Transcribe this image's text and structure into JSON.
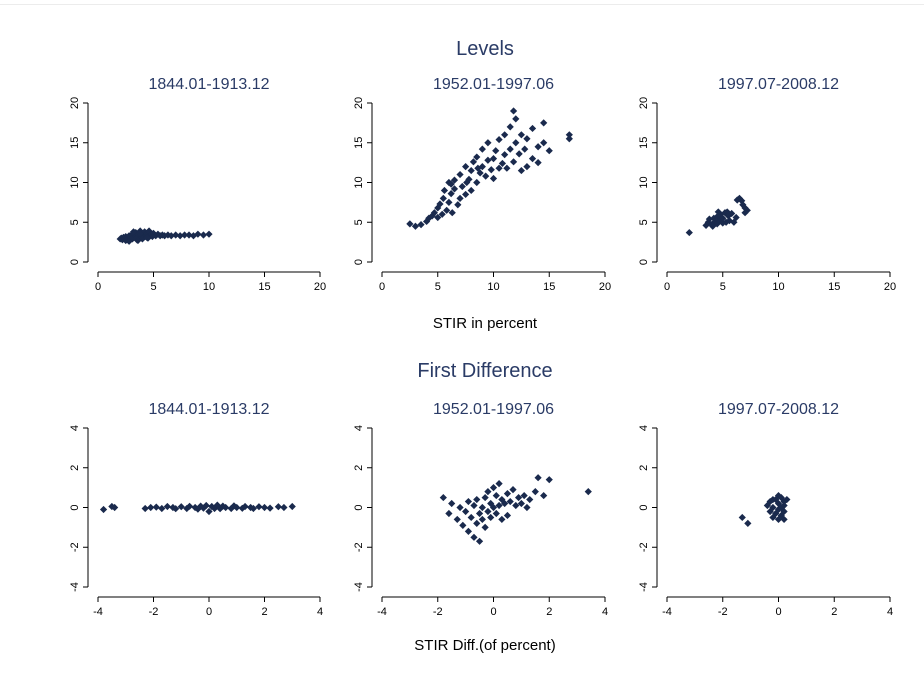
{
  "figure": {
    "colors": {
      "marker": "#1a2a4d",
      "title": "#2a3b66",
      "axis": "#000000",
      "background": "#ffffff"
    },
    "marker_shape": "diamond",
    "sections": [
      {
        "title": "Levels",
        "xlabel": "STIR in percent"
      },
      {
        "title": "First Difference",
        "xlabel": "STIR Diff.(of percent)"
      }
    ]
  },
  "chart_data": [
    {
      "type": "scatter",
      "section": "Levels",
      "title": "1844.01-1913.12",
      "xlim": [
        0,
        20
      ],
      "ylim": [
        0,
        20
      ],
      "xticks": [
        "0",
        "5",
        "10",
        "15",
        "20"
      ],
      "yticks": [
        "0",
        "5",
        "10",
        "15",
        "20"
      ],
      "grid": false,
      "points": [
        [
          2.0,
          2.9
        ],
        [
          2.1,
          3.0
        ],
        [
          2.2,
          2.8
        ],
        [
          2.3,
          3.1
        ],
        [
          2.4,
          2.9
        ],
        [
          2.5,
          3.2
        ],
        [
          2.6,
          3.0
        ],
        [
          2.7,
          2.8
        ],
        [
          2.8,
          3.3
        ],
        [
          2.9,
          3.0
        ],
        [
          3.0,
          3.4
        ],
        [
          3.1,
          2.9
        ],
        [
          3.2,
          3.5
        ],
        [
          3.3,
          3.1
        ],
        [
          3.4,
          3.7
        ],
        [
          3.5,
          3.0
        ],
        [
          3.6,
          3.6
        ],
        [
          3.7,
          3.2
        ],
        [
          3.8,
          3.9
        ],
        [
          3.9,
          3.1
        ],
        [
          4.0,
          3.5
        ],
        [
          4.1,
          3.3
        ],
        [
          4.2,
          3.8
        ],
        [
          4.3,
          3.2
        ],
        [
          4.4,
          3.6
        ],
        [
          4.5,
          3.4
        ],
        [
          4.6,
          3.9
        ],
        [
          4.7,
          3.3
        ],
        [
          4.8,
          3.5
        ],
        [
          4.9,
          3.2
        ],
        [
          5.0,
          3.6
        ],
        [
          5.2,
          3.3
        ],
        [
          5.4,
          3.5
        ],
        [
          5.6,
          3.3
        ],
        [
          5.8,
          3.4
        ],
        [
          6.0,
          3.3
        ],
        [
          6.3,
          3.4
        ],
        [
          6.6,
          3.3
        ],
        [
          7.0,
          3.4
        ],
        [
          7.4,
          3.3
        ],
        [
          7.8,
          3.4
        ],
        [
          8.2,
          3.4
        ],
        [
          8.6,
          3.3
        ],
        [
          9.0,
          3.5
        ],
        [
          9.5,
          3.4
        ],
        [
          10.0,
          3.5
        ],
        [
          2.5,
          2.7
        ],
        [
          3.0,
          2.9
        ],
        [
          3.5,
          2.8
        ],
        [
          4.0,
          2.9
        ],
        [
          4.5,
          3.0
        ],
        [
          3.2,
          3.8
        ],
        [
          3.8,
          3.6
        ],
        [
          4.4,
          3.1
        ],
        [
          2.8,
          2.6
        ],
        [
          3.6,
          2.7
        ]
      ]
    },
    {
      "type": "scatter",
      "section": "Levels",
      "title": "1952.01-1997.06",
      "xlim": [
        0,
        20
      ],
      "ylim": [
        0,
        20
      ],
      "xticks": [
        "0",
        "5",
        "10",
        "15",
        "20"
      ],
      "yticks": [
        "0",
        "5",
        "10",
        "15",
        "20"
      ],
      "grid": false,
      "points": [
        [
          2.5,
          4.8
        ],
        [
          3.0,
          4.5
        ],
        [
          3.5,
          4.7
        ],
        [
          4.0,
          5.1
        ],
        [
          4.2,
          5.5
        ],
        [
          4.5,
          5.8
        ],
        [
          4.7,
          6.2
        ],
        [
          5.0,
          5.6
        ],
        [
          5.0,
          6.8
        ],
        [
          5.2,
          7.3
        ],
        [
          5.4,
          6.0
        ],
        [
          5.5,
          8.0
        ],
        [
          5.6,
          9.0
        ],
        [
          5.8,
          6.5
        ],
        [
          6.0,
          7.5
        ],
        [
          6.0,
          10.0
        ],
        [
          6.2,
          8.6
        ],
        [
          6.3,
          6.2
        ],
        [
          6.5,
          9.2
        ],
        [
          6.5,
          10.3
        ],
        [
          6.8,
          7.2
        ],
        [
          7.0,
          8.0
        ],
        [
          7.0,
          11.0
        ],
        [
          7.2,
          9.5
        ],
        [
          7.5,
          8.5
        ],
        [
          7.5,
          12.0
        ],
        [
          7.8,
          10.4
        ],
        [
          8.0,
          9.0
        ],
        [
          8.0,
          11.5
        ],
        [
          8.2,
          12.6
        ],
        [
          8.5,
          10.0
        ],
        [
          8.5,
          13.2
        ],
        [
          8.8,
          11.2
        ],
        [
          9.0,
          12.0
        ],
        [
          9.0,
          14.2
        ],
        [
          9.3,
          10.8
        ],
        [
          9.5,
          12.8
        ],
        [
          9.5,
          15.0
        ],
        [
          9.8,
          11.6
        ],
        [
          10.0,
          13.0
        ],
        [
          10.0,
          10.5
        ],
        [
          10.2,
          14.0
        ],
        [
          10.5,
          11.8
        ],
        [
          10.5,
          15.4
        ],
        [
          10.8,
          12.4
        ],
        [
          11.0,
          13.5
        ],
        [
          11.0,
          16.0
        ],
        [
          11.2,
          11.8
        ],
        [
          11.5,
          14.2
        ],
        [
          11.5,
          17.0
        ],
        [
          11.8,
          12.6
        ],
        [
          12.0,
          15.0
        ],
        [
          12.0,
          18.0
        ],
        [
          12.3,
          13.6
        ],
        [
          12.5,
          16.0
        ],
        [
          12.5,
          11.5
        ],
        [
          12.8,
          14.2
        ],
        [
          13.0,
          12.0
        ],
        [
          13.0,
          15.5
        ],
        [
          13.5,
          13.0
        ],
        [
          13.5,
          16.8
        ],
        [
          14.0,
          14.5
        ],
        [
          14.0,
          12.5
        ],
        [
          14.5,
          17.5
        ],
        [
          14.5,
          15.0
        ],
        [
          15.0,
          14.0
        ],
        [
          16.8,
          16.0
        ],
        [
          16.8,
          15.5
        ],
        [
          11.8,
          19.0
        ],
        [
          6.2,
          9.8
        ],
        [
          7.6,
          10.0
        ],
        [
          8.6,
          11.8
        ]
      ]
    },
    {
      "type": "scatter",
      "section": "Levels",
      "title": "1997.07-2008.12",
      "xlim": [
        0,
        20
      ],
      "ylim": [
        0,
        20
      ],
      "xticks": [
        "0",
        "5",
        "10",
        "15",
        "20"
      ],
      "yticks": [
        "0",
        "5",
        "10",
        "15",
        "20"
      ],
      "grid": false,
      "points": [
        [
          2.0,
          3.7
        ],
        [
          3.5,
          4.6
        ],
        [
          3.7,
          5.0
        ],
        [
          3.8,
          5.4
        ],
        [
          4.0,
          4.7
        ],
        [
          4.2,
          5.5
        ],
        [
          4.3,
          5.1
        ],
        [
          4.5,
          4.8
        ],
        [
          4.5,
          5.7
        ],
        [
          4.7,
          5.2
        ],
        [
          4.8,
          6.0
        ],
        [
          5.0,
          4.9
        ],
        [
          5.0,
          5.5
        ],
        [
          5.2,
          6.2
        ],
        [
          5.3,
          5.0
        ],
        [
          5.5,
          5.8
        ],
        [
          5.6,
          5.2
        ],
        [
          5.8,
          6.1
        ],
        [
          6.0,
          5.0
        ],
        [
          6.2,
          5.6
        ],
        [
          6.3,
          7.8
        ],
        [
          6.5,
          8.0
        ],
        [
          6.7,
          7.7
        ],
        [
          6.8,
          7.2
        ],
        [
          7.0,
          6.8
        ],
        [
          7.0,
          6.2
        ],
        [
          7.2,
          6.5
        ],
        [
          4.6,
          6.3
        ],
        [
          5.4,
          6.3
        ],
        [
          4.1,
          4.5
        ]
      ]
    },
    {
      "type": "scatter",
      "section": "First Difference",
      "title": "1844.01-1913.12",
      "xlim": [
        -4,
        4
      ],
      "ylim": [
        -4,
        4
      ],
      "xticks": [
        "-4",
        "-2",
        "0",
        "2",
        "4"
      ],
      "yticks": [
        "-4",
        "-2",
        "0",
        "2",
        "4"
      ],
      "grid": false,
      "points": [
        [
          -3.8,
          -0.1
        ],
        [
          -3.5,
          0.05
        ],
        [
          -3.4,
          0.0
        ],
        [
          -2.3,
          -0.05
        ],
        [
          -2.1,
          0.0
        ],
        [
          -1.9,
          0.02
        ],
        [
          -1.7,
          -0.05
        ],
        [
          -1.5,
          0.05
        ],
        [
          -1.3,
          0.0
        ],
        [
          -1.2,
          -0.06
        ],
        [
          -1.0,
          0.04
        ],
        [
          -0.8,
          -0.05
        ],
        [
          -0.7,
          0.06
        ],
        [
          -0.5,
          0.0
        ],
        [
          -0.4,
          -0.08
        ],
        [
          -0.3,
          0.07
        ],
        [
          -0.2,
          -0.03
        ],
        [
          -0.1,
          0.1
        ],
        [
          0.0,
          -0.2
        ],
        [
          0.1,
          0.05
        ],
        [
          0.2,
          -0.05
        ],
        [
          0.3,
          0.12
        ],
        [
          0.4,
          -0.06
        ],
        [
          0.5,
          0.07
        ],
        [
          0.6,
          0.0
        ],
        [
          0.8,
          -0.05
        ],
        [
          0.9,
          0.08
        ],
        [
          1.0,
          0.0
        ],
        [
          1.2,
          -0.04
        ],
        [
          1.3,
          0.05
        ],
        [
          1.5,
          0.0
        ],
        [
          1.6,
          -0.05
        ],
        [
          1.8,
          0.04
        ],
        [
          2.0,
          0.0
        ],
        [
          2.2,
          -0.03
        ],
        [
          2.5,
          0.04
        ],
        [
          2.7,
          0.0
        ],
        [
          3.0,
          0.05
        ]
      ]
    },
    {
      "type": "scatter",
      "section": "First Difference",
      "title": "1952.01-1997.06",
      "xlim": [
        -4,
        4
      ],
      "ylim": [
        -4,
        4
      ],
      "xticks": [
        "-4",
        "-2",
        "0",
        "2",
        "4"
      ],
      "yticks": [
        "-4",
        "-2",
        "0",
        "2",
        "4"
      ],
      "grid": false,
      "points": [
        [
          -1.8,
          0.5
        ],
        [
          -1.6,
          -0.3
        ],
        [
          -1.5,
          0.2
        ],
        [
          -1.3,
          -0.6
        ],
        [
          -1.2,
          0.0
        ],
        [
          -1.1,
          -0.9
        ],
        [
          -1.0,
          -0.2
        ],
        [
          -0.9,
          0.3
        ],
        [
          -0.9,
          -1.2
        ],
        [
          -0.8,
          -0.5
        ],
        [
          -0.7,
          0.1
        ],
        [
          -0.7,
          -1.5
        ],
        [
          -0.6,
          -0.8
        ],
        [
          -0.6,
          0.4
        ],
        [
          -0.5,
          -0.3
        ],
        [
          -0.5,
          -1.7
        ],
        [
          -0.4,
          0.0
        ],
        [
          -0.4,
          -0.6
        ],
        [
          -0.3,
          0.5
        ],
        [
          -0.3,
          -1.0
        ],
        [
          -0.2,
          -0.2
        ],
        [
          -0.2,
          0.8
        ],
        [
          -0.1,
          0.2
        ],
        [
          -0.1,
          -0.5
        ],
        [
          0.0,
          0.0
        ],
        [
          0.0,
          1.0
        ],
        [
          0.1,
          -0.3
        ],
        [
          0.1,
          0.6
        ],
        [
          0.2,
          0.1
        ],
        [
          0.2,
          1.2
        ],
        [
          0.3,
          -0.6
        ],
        [
          0.3,
          0.4
        ],
        [
          0.4,
          0.2
        ],
        [
          0.5,
          0.7
        ],
        [
          0.5,
          -0.4
        ],
        [
          0.6,
          0.3
        ],
        [
          0.7,
          0.9
        ],
        [
          0.8,
          0.1
        ],
        [
          0.9,
          0.5
        ],
        [
          1.0,
          0.2
        ],
        [
          1.1,
          0.6
        ],
        [
          1.2,
          0.0
        ],
        [
          1.3,
          0.4
        ],
        [
          1.5,
          0.8
        ],
        [
          1.6,
          1.5
        ],
        [
          1.8,
          0.6
        ],
        [
          2.0,
          1.4
        ],
        [
          3.4,
          0.8
        ]
      ]
    },
    {
      "type": "scatter",
      "section": "First Difference",
      "title": "1997.07-2008.12",
      "xlim": [
        -4,
        4
      ],
      "ylim": [
        -4,
        4
      ],
      "xticks": [
        "-4",
        "-2",
        "0",
        "2",
        "4"
      ],
      "yticks": [
        "-4",
        "-2",
        "0",
        "2",
        "4"
      ],
      "grid": false,
      "points": [
        [
          -1.3,
          -0.5
        ],
        [
          -1.1,
          -0.8
        ],
        [
          -0.4,
          0.1
        ],
        [
          -0.3,
          -0.2
        ],
        [
          -0.3,
          0.3
        ],
        [
          -0.2,
          -0.5
        ],
        [
          -0.2,
          0.0
        ],
        [
          -0.1,
          0.4
        ],
        [
          -0.1,
          -0.3
        ],
        [
          0.0,
          0.2
        ],
        [
          0.0,
          -0.1
        ],
        [
          0.0,
          0.6
        ],
        [
          0.1,
          -0.4
        ],
        [
          0.1,
          0.0
        ],
        [
          0.1,
          0.5
        ],
        [
          0.2,
          -0.2
        ],
        [
          0.2,
          0.3
        ],
        [
          0.2,
          -0.6
        ],
        [
          0.2,
          0.1
        ],
        [
          0.3,
          0.4
        ],
        [
          -0.2,
          0.4
        ],
        [
          0.0,
          -0.6
        ]
      ]
    }
  ]
}
